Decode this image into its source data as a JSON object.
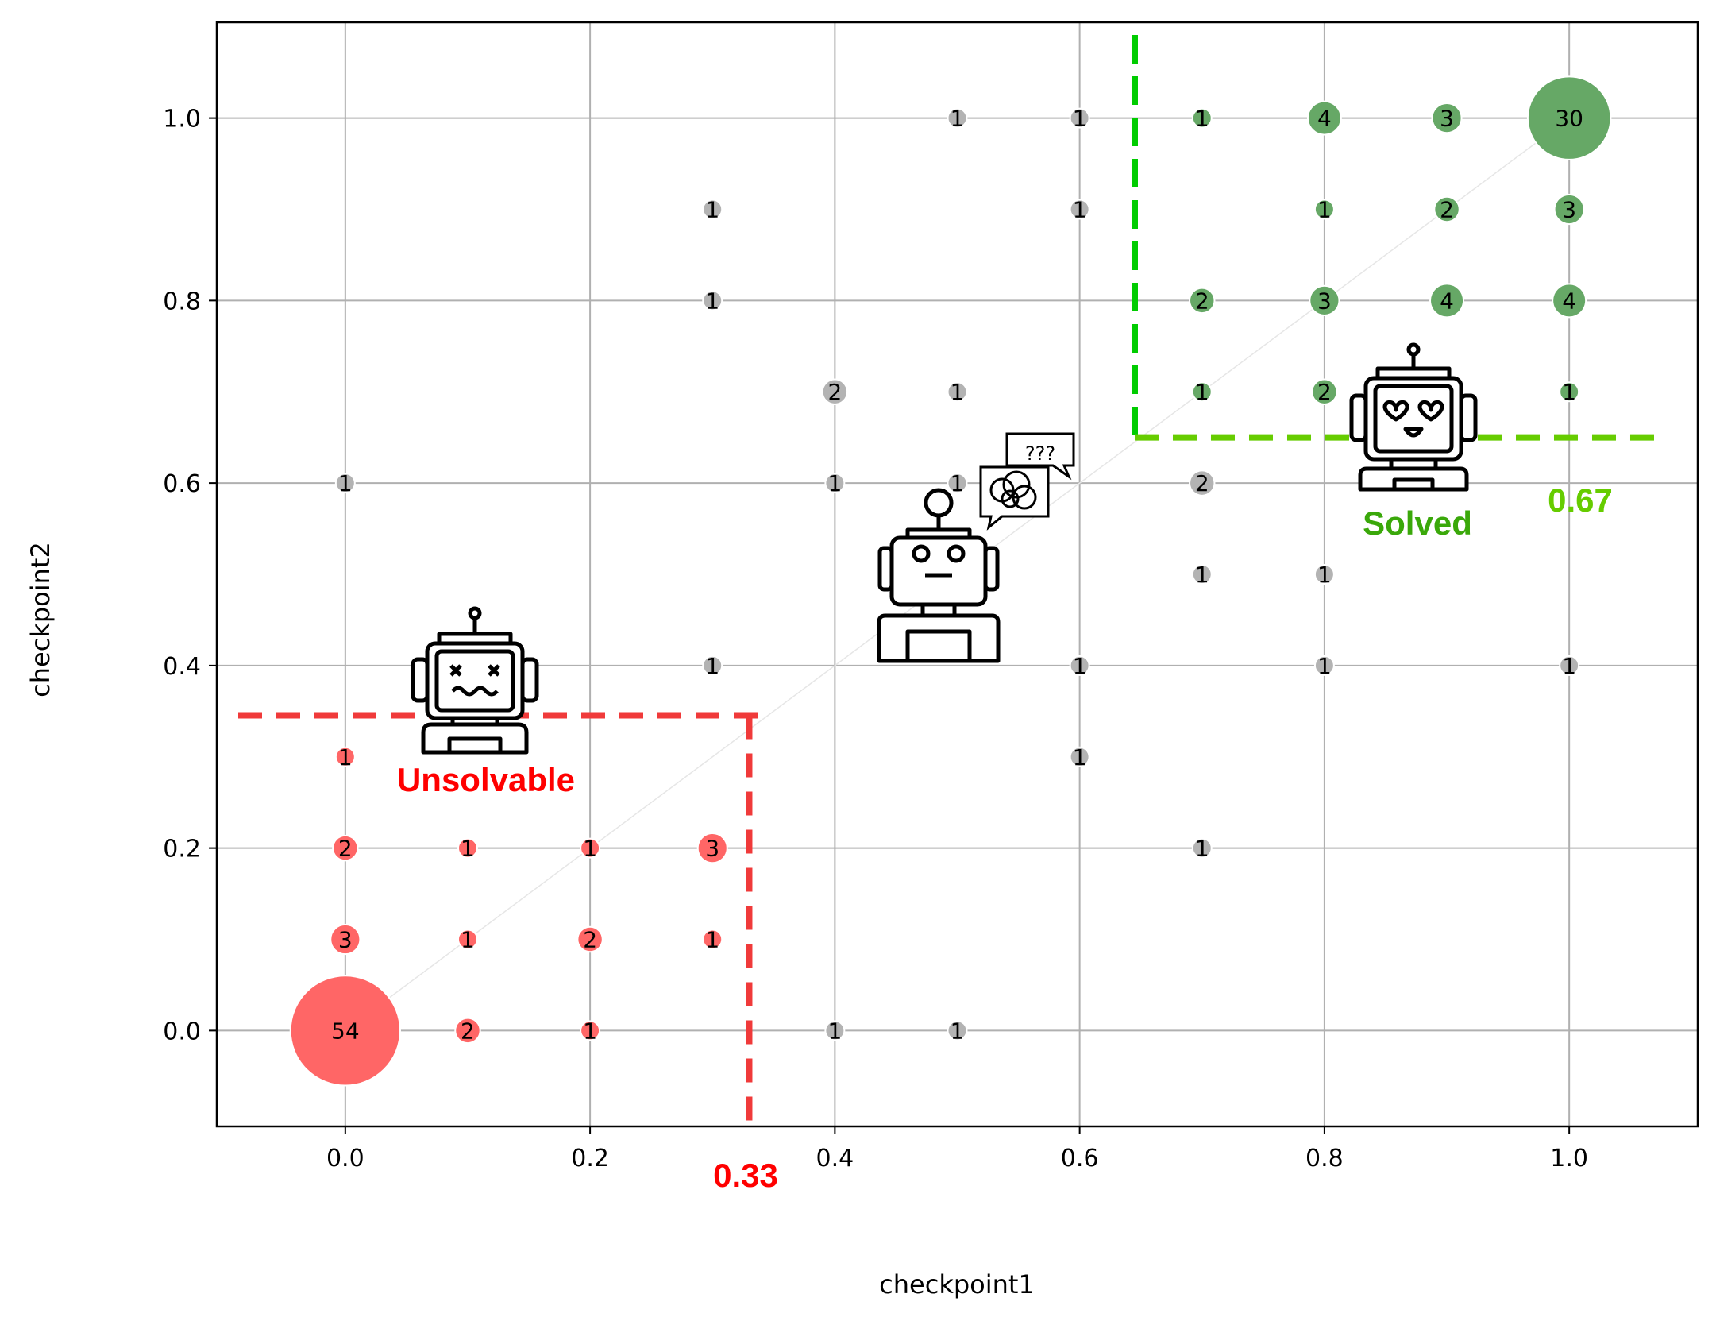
{
  "chart_data": {
    "type": "scatter",
    "xlabel": "checkpoint1",
    "ylabel": "checkpoint2",
    "xlim": [
      -0.105,
      1.105
    ],
    "ylim": [
      -0.105,
      1.105
    ],
    "xticks": [
      "0.0",
      "0.2",
      "0.4",
      "0.6",
      "0.8",
      "1.0"
    ],
    "yticks": [
      "0.0",
      "0.2",
      "0.4",
      "0.6",
      "0.8",
      "1.0"
    ],
    "grid": true,
    "colors": {
      "unsolvable": "#ff6666",
      "neutral": "#b3b3b3",
      "solved": "#66a866",
      "unsolvable_line": "#f03a3a",
      "solved_line": "#00cc00",
      "solved_line_h": "#66cc00",
      "unsolvable_text": "#ff0000",
      "solved_text": "#3aa80a",
      "threshold_solved_text": "#66cc00"
    },
    "points": [
      {
        "x": 0.0,
        "y": 0.0,
        "count": 54,
        "group": "unsolvable"
      },
      {
        "x": 0.1,
        "y": 0.0,
        "count": 2,
        "group": "unsolvable"
      },
      {
        "x": 0.2,
        "y": 0.0,
        "count": 1,
        "group": "unsolvable"
      },
      {
        "x": 0.4,
        "y": 0.0,
        "count": 1,
        "group": "neutral"
      },
      {
        "x": 0.5,
        "y": 0.0,
        "count": 1,
        "group": "neutral"
      },
      {
        "x": 0.0,
        "y": 0.1,
        "count": 3,
        "group": "unsolvable"
      },
      {
        "x": 0.1,
        "y": 0.1,
        "count": 1,
        "group": "unsolvable"
      },
      {
        "x": 0.2,
        "y": 0.1,
        "count": 2,
        "group": "unsolvable"
      },
      {
        "x": 0.3,
        "y": 0.1,
        "count": 1,
        "group": "unsolvable"
      },
      {
        "x": 0.0,
        "y": 0.2,
        "count": 2,
        "group": "unsolvable"
      },
      {
        "x": 0.1,
        "y": 0.2,
        "count": 1,
        "group": "unsolvable"
      },
      {
        "x": 0.2,
        "y": 0.2,
        "count": 1,
        "group": "unsolvable"
      },
      {
        "x": 0.3,
        "y": 0.2,
        "count": 3,
        "group": "unsolvable"
      },
      {
        "x": 0.7,
        "y": 0.2,
        "count": 1,
        "group": "neutral"
      },
      {
        "x": 0.0,
        "y": 0.3,
        "count": 1,
        "group": "unsolvable"
      },
      {
        "x": 0.6,
        "y": 0.3,
        "count": 1,
        "group": "neutral"
      },
      {
        "x": 0.3,
        "y": 0.4,
        "count": 1,
        "group": "neutral"
      },
      {
        "x": 0.6,
        "y": 0.4,
        "count": 1,
        "group": "neutral"
      },
      {
        "x": 0.8,
        "y": 0.4,
        "count": 1,
        "group": "neutral"
      },
      {
        "x": 1.0,
        "y": 0.4,
        "count": 1,
        "group": "neutral"
      },
      {
        "x": 0.7,
        "y": 0.5,
        "count": 1,
        "group": "neutral"
      },
      {
        "x": 0.8,
        "y": 0.5,
        "count": 1,
        "group": "neutral"
      },
      {
        "x": 0.0,
        "y": 0.6,
        "count": 1,
        "group": "neutral"
      },
      {
        "x": 0.4,
        "y": 0.6,
        "count": 1,
        "group": "neutral"
      },
      {
        "x": 0.5,
        "y": 0.6,
        "count": 1,
        "group": "neutral"
      },
      {
        "x": 0.7,
        "y": 0.6,
        "count": 2,
        "group": "neutral"
      },
      {
        "x": 0.4,
        "y": 0.7,
        "count": 2,
        "group": "neutral"
      },
      {
        "x": 0.5,
        "y": 0.7,
        "count": 1,
        "group": "neutral"
      },
      {
        "x": 0.7,
        "y": 0.7,
        "count": 1,
        "group": "solved"
      },
      {
        "x": 0.8,
        "y": 0.7,
        "count": 2,
        "group": "solved"
      },
      {
        "x": 1.0,
        "y": 0.7,
        "count": 1,
        "group": "solved"
      },
      {
        "x": 0.3,
        "y": 0.8,
        "count": 1,
        "group": "neutral"
      },
      {
        "x": 0.7,
        "y": 0.8,
        "count": 2,
        "group": "solved"
      },
      {
        "x": 0.8,
        "y": 0.8,
        "count": 3,
        "group": "solved"
      },
      {
        "x": 0.9,
        "y": 0.8,
        "count": 4,
        "group": "solved"
      },
      {
        "x": 1.0,
        "y": 0.8,
        "count": 4,
        "group": "solved"
      },
      {
        "x": 0.3,
        "y": 0.9,
        "count": 1,
        "group": "neutral"
      },
      {
        "x": 0.6,
        "y": 0.9,
        "count": 1,
        "group": "neutral"
      },
      {
        "x": 0.8,
        "y": 0.9,
        "count": 1,
        "group": "solved"
      },
      {
        "x": 0.9,
        "y": 0.9,
        "count": 2,
        "group": "solved"
      },
      {
        "x": 1.0,
        "y": 0.9,
        "count": 3,
        "group": "solved"
      },
      {
        "x": 0.5,
        "y": 1.0,
        "count": 1,
        "group": "neutral"
      },
      {
        "x": 0.6,
        "y": 1.0,
        "count": 1,
        "group": "neutral"
      },
      {
        "x": 0.7,
        "y": 1.0,
        "count": 1,
        "group": "solved"
      },
      {
        "x": 0.8,
        "y": 1.0,
        "count": 4,
        "group": "solved"
      },
      {
        "x": 0.9,
        "y": 1.0,
        "count": 3,
        "group": "solved"
      },
      {
        "x": 1.0,
        "y": 1.0,
        "count": 30,
        "group": "solved"
      }
    ],
    "thresholds": {
      "unsolvable": {
        "x": 0.33,
        "y": 0.3455,
        "label": "0.33"
      },
      "solved": {
        "x": 0.645,
        "y": 0.65,
        "label": "0.67"
      }
    },
    "annotations": {
      "unsolvable": "Unsolvable",
      "solved": "Solved",
      "confused": "???"
    }
  }
}
